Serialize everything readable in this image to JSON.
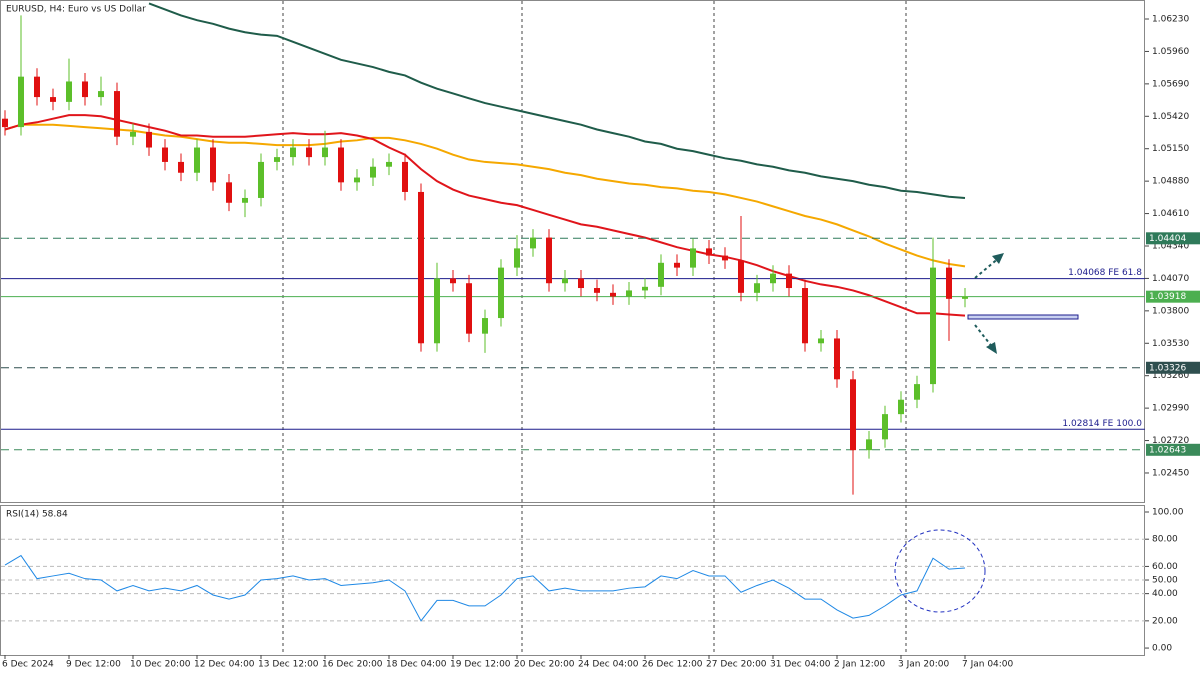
{
  "chart_data": [
    {
      "type": "candlestick",
      "title": "EURUSD, H4:  Euro vs US Dollar",
      "categories": [
        "6 Dec 2024",
        null,
        null,
        null,
        "9 Dec 12:00",
        null,
        null,
        null,
        "10 Dec 20:00",
        null,
        null,
        null,
        "12 Dec 04:00",
        null,
        null,
        null,
        "13 Dec 12:00",
        null,
        null,
        null,
        "16 Dec 20:00",
        null,
        null,
        null,
        "18 Dec 04:00",
        null,
        null,
        null,
        "19 Dec 12:00",
        null,
        null,
        null,
        "20 Dec 20:00",
        null,
        null,
        null,
        "24 Dec 04:00",
        null,
        null,
        null,
        "26 Dec 12:00",
        null,
        null,
        null,
        "27 Dec 20:00",
        null,
        null,
        null,
        "31 Dec 04:00",
        null,
        null,
        null,
        "2 Jan 12:00",
        null,
        null,
        null,
        "3 Jan 20:00",
        null,
        null,
        null,
        "7 Jan 04:00"
      ],
      "open": [
        1.054,
        1.0533,
        1.0575,
        1.0558,
        1.0554,
        1.0571,
        1.0558,
        1.0563,
        1.0525,
        1.0529,
        1.0516,
        1.0504,
        1.0495,
        1.0516,
        1.0487,
        1.047,
        1.0474,
        1.0504,
        1.0508,
        1.0516,
        1.0508,
        1.0516,
        1.0487,
        1.0491,
        1.05,
        1.0504,
        1.0479,
        1.0353,
        1.0407,
        1.0403,
        1.0361,
        1.0374,
        1.0416,
        1.0432,
        1.0441,
        1.0403,
        1.0407,
        1.0399,
        1.0395,
        1.0392,
        1.0397,
        1.04,
        1.042,
        1.0416,
        1.0432,
        1.0426,
        1.0422,
        1.0395,
        1.0403,
        1.0411,
        1.0399,
        1.0353,
        1.0357,
        1.0323,
        1.0264,
        1.0273,
        1.0294,
        1.0306,
        1.0319,
        1.0416,
        1.039
      ],
      "high": [
        1.0547,
        1.0626,
        1.0582,
        1.0565,
        1.059,
        1.0578,
        1.0575,
        1.057,
        1.0536,
        1.0536,
        1.0523,
        1.0511,
        1.0523,
        1.0523,
        1.0494,
        1.0481,
        1.0511,
        1.0515,
        1.0523,
        1.0523,
        1.053,
        1.0523,
        1.0498,
        1.0507,
        1.0511,
        1.0511,
        1.0486,
        1.042,
        1.0414,
        1.041,
        1.0381,
        1.0423,
        1.0443,
        1.0448,
        1.0448,
        1.0414,
        1.0414,
        1.0406,
        1.0402,
        1.0404,
        1.0407,
        1.0427,
        1.0427,
        1.044,
        1.0439,
        1.0433,
        1.0459,
        1.041,
        1.0418,
        1.0418,
        1.0406,
        1.0364,
        1.0364,
        1.033,
        1.028,
        1.0301,
        1.0313,
        1.0326,
        1.0441,
        1.0423,
        1.0399
      ],
      "low": [
        1.0526,
        1.0526,
        1.0551,
        1.0547,
        1.0547,
        1.0551,
        1.0551,
        1.0518,
        1.0518,
        1.0509,
        1.0497,
        1.0488,
        1.0488,
        1.048,
        1.0463,
        1.0458,
        1.0467,
        1.0497,
        1.0501,
        1.0501,
        1.0501,
        1.048,
        1.048,
        1.0484,
        1.0493,
        1.0472,
        1.0346,
        1.0346,
        1.0396,
        1.0354,
        1.0345,
        1.0367,
        1.0409,
        1.0425,
        1.0396,
        1.0396,
        1.0392,
        1.0388,
        1.0385,
        1.0385,
        1.039,
        1.0393,
        1.0409,
        1.0409,
        1.0419,
        1.0415,
        1.0388,
        1.0388,
        1.0396,
        1.0392,
        1.0346,
        1.0346,
        1.0316,
        1.0227,
        1.0257,
        1.0266,
        1.0287,
        1.0299,
        1.0312,
        1.0355,
        1.0383
      ],
      "close": [
        1.0533,
        1.0575,
        1.0558,
        1.0554,
        1.0571,
        1.0558,
        1.0563,
        1.0525,
        1.0529,
        1.0516,
        1.0504,
        1.0495,
        1.0516,
        1.0487,
        1.047,
        1.0474,
        1.0504,
        1.0508,
        1.0516,
        1.0508,
        1.0516,
        1.0487,
        1.0491,
        1.05,
        1.0504,
        1.0479,
        1.0353,
        1.0407,
        1.0403,
        1.0361,
        1.0374,
        1.0416,
        1.0432,
        1.0441,
        1.0403,
        1.0407,
        1.0399,
        1.0395,
        1.0392,
        1.0397,
        1.04,
        1.042,
        1.0416,
        1.0432,
        1.0426,
        1.0422,
        1.0395,
        1.0403,
        1.0411,
        1.0399,
        1.0353,
        1.0357,
        1.0323,
        1.0264,
        1.0273,
        1.0294,
        1.0306,
        1.0319,
        1.0416,
        1.039,
        1.0392
      ],
      "up_color": "#5cbf2a",
      "down_color": "#e01010",
      "series": [
        {
          "color": "#1f5c4a",
          "values": [
            null,
            null,
            null,
            null,
            null,
            null,
            null,
            null,
            null,
            1.0636,
            1.0631,
            1.0626,
            1.0622,
            1.0619,
            1.0615,
            1.0612,
            1.061,
            1.0609,
            1.0604,
            1.0599,
            1.0594,
            1.0589,
            1.0586,
            1.0583,
            1.0579,
            1.0576,
            1.057,
            1.0565,
            1.0561,
            1.0557,
            1.0553,
            1.055,
            1.0547,
            1.0544,
            1.0541,
            1.0538,
            1.0535,
            1.0531,
            1.0528,
            1.0525,
            1.0521,
            1.0519,
            1.0515,
            1.0513,
            1.051,
            1.0507,
            1.0505,
            1.0502,
            1.05,
            1.0497,
            1.0495,
            1.0492,
            1.049,
            1.0488,
            1.0485,
            1.0483,
            1.048,
            1.0479,
            1.0477,
            1.0475,
            1.0474
          ]
        },
        {
          "color": "#f5a800",
          "values": [
            1.0531,
            1.0535,
            1.0535,
            1.0535,
            1.0534,
            1.0533,
            1.0532,
            1.0531,
            1.053,
            1.0528,
            1.0526,
            1.0525,
            1.0523,
            1.0521,
            1.052,
            1.052,
            1.0519,
            1.0518,
            1.0518,
            1.0518,
            1.0519,
            1.0521,
            1.0522,
            1.0524,
            1.0524,
            1.0522,
            1.0519,
            1.0515,
            1.051,
            1.0506,
            1.0504,
            1.0503,
            1.0502,
            1.05,
            1.0498,
            1.0495,
            1.0493,
            1.049,
            1.0488,
            1.0486,
            1.0485,
            1.0483,
            1.0482,
            1.048,
            1.0479,
            1.0477,
            1.0474,
            1.0471,
            1.0467,
            1.0463,
            1.0459,
            1.0456,
            1.0452,
            1.0447,
            1.0442,
            1.0436,
            1.0431,
            1.0426,
            1.0422,
            1.0419,
            1.0417
          ]
        },
        {
          "color": "#e0151b",
          "values": [
            1.0531,
            1.0535,
            1.0537,
            1.054,
            1.0543,
            1.0543,
            1.0542,
            1.0539,
            1.0536,
            1.0533,
            1.053,
            1.0526,
            1.0526,
            1.0525,
            1.0525,
            1.0525,
            1.0526,
            1.0527,
            1.0528,
            1.0527,
            1.0527,
            1.0528,
            1.0526,
            1.0523,
            1.0516,
            1.051,
            1.0498,
            1.0488,
            1.0481,
            1.0476,
            1.0473,
            1.047,
            1.0468,
            1.0464,
            1.046,
            1.0456,
            1.0452,
            1.045,
            1.0447,
            1.0444,
            1.0441,
            1.0437,
            1.0433,
            1.043,
            1.0427,
            1.0425,
            1.0422,
            1.0418,
            1.0413,
            1.0409,
            1.0405,
            1.0402,
            1.04,
            1.0397,
            1.0393,
            1.0388,
            1.0383,
            1.0378,
            1.0378,
            1.0377,
            1.0376
          ]
        }
      ],
      "ylim": [
        1.022,
        1.0638
      ],
      "yticks": [
        {
          "value": 1.0623,
          "label": "1.06230"
        },
        {
          "value": 1.0596,
          "label": "1.05960"
        },
        {
          "value": 1.0569,
          "label": "1.05690"
        },
        {
          "value": 1.0542,
          "label": "1.05420"
        },
        {
          "value": 1.0515,
          "label": "1.05150"
        },
        {
          "value": 1.0488,
          "label": "1.04880"
        },
        {
          "value": 1.0461,
          "label": "1.04610"
        },
        {
          "value": 1.0434,
          "label": "1.04340"
        },
        {
          "value": 1.0407,
          "label": "1.04070"
        },
        {
          "value": 1.038,
          "label": "1.03800"
        },
        {
          "value": 1.0353,
          "label": "1.03530"
        },
        {
          "value": 1.0326,
          "label": "1.03260"
        },
        {
          "value": 1.0299,
          "label": "1.02990"
        },
        {
          "value": 1.0272,
          "label": "1.02720"
        },
        {
          "value": 1.0245,
          "label": "1.02450"
        }
      ],
      "levels": [
        {
          "value": 1.04404,
          "label": "1.04404",
          "color": "#2f7a5a",
          "style": "dashed",
          "tag": "box"
        },
        {
          "value": 1.04068,
          "label": "1.04068 FE 61.8",
          "color": "#1c1c8c",
          "style": "solid",
          "tag": "text"
        },
        {
          "value": 1.03918,
          "label": "1.03918",
          "color": "#4caf50",
          "style": "solid",
          "tag": "box"
        },
        {
          "value": 1.03326,
          "label": "1.03326",
          "color": "#2f4f4f",
          "style": "dashed",
          "tag": "box"
        },
        {
          "value": 1.02814,
          "label": "1.02814 FE 100.0",
          "color": "#1c1c8c",
          "style": "solid",
          "tag": "text"
        },
        {
          "value": 1.02643,
          "label": "1.02643",
          "color": "#3a8a5a",
          "style": "dashed",
          "tag": "box"
        }
      ]
    },
    {
      "type": "line",
      "title": "RSI(14) 58.84",
      "color": "#1e88e5",
      "values": [
        61,
        68,
        51,
        53,
        55,
        51,
        50,
        42,
        46,
        42,
        44,
        42,
        46,
        39,
        36,
        39,
        50,
        51,
        53,
        50,
        51,
        46,
        47,
        48,
        50,
        42,
        20,
        35,
        35,
        31,
        31,
        39,
        51,
        53,
        42,
        44,
        42,
        42,
        42,
        44,
        45,
        53,
        51,
        57,
        53,
        53,
        41,
        46,
        50,
        44,
        36,
        36,
        28,
        22,
        24,
        31,
        39,
        42,
        66,
        58,
        58.84
      ],
      "ylim": [
        -5.1,
        104.4
      ],
      "yticks": [
        {
          "value": 100,
          "label": "100.00"
        },
        {
          "value": 80,
          "label": "80.00"
        },
        {
          "value": 60,
          "label": "60.00"
        },
        {
          "value": 50,
          "label": "50.00"
        },
        {
          "value": 40,
          "label": "40.00"
        },
        {
          "value": 20,
          "label": "20.00"
        },
        {
          "value": 0,
          "label": "0.00"
        }
      ],
      "grid": true
    }
  ]
}
